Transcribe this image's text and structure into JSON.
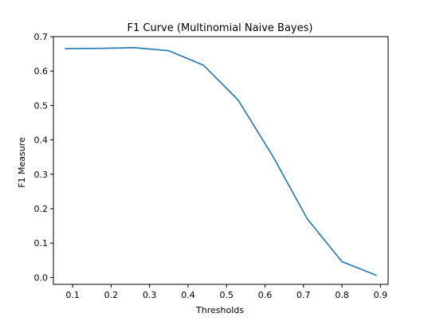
{
  "chart_data": {
    "type": "line",
    "title": "F1 Curve (Multinomial Naive Bayes)",
    "xlabel": "Thresholds",
    "ylabel": "F1 Measure",
    "xlim": [
      0.05,
      0.92
    ],
    "ylim": [
      -0.02,
      0.7
    ],
    "xticks": [
      0.1,
      0.2,
      0.3,
      0.4,
      0.5,
      0.6,
      0.7,
      0.8,
      0.9
    ],
    "xtick_labels": [
      "0.1",
      "0.2",
      "0.3",
      "0.4",
      "0.5",
      "0.6",
      "0.7",
      "0.8",
      "0.9"
    ],
    "yticks": [
      0.0,
      0.1,
      0.2,
      0.3,
      0.4,
      0.5,
      0.6,
      0.7
    ],
    "ytick_labels": [
      "0.0",
      "0.1",
      "0.2",
      "0.3",
      "0.4",
      "0.5",
      "0.6",
      "0.7"
    ],
    "grid": false,
    "series": [
      {
        "color": "#1f77b4",
        "x": [
          0.08,
          0.17,
          0.26,
          0.35,
          0.44,
          0.53,
          0.62,
          0.71,
          0.8,
          0.89
        ],
        "y": [
          0.665,
          0.666,
          0.668,
          0.659,
          0.617,
          0.516,
          0.353,
          0.17,
          0.046,
          0.006
        ]
      }
    ]
  }
}
